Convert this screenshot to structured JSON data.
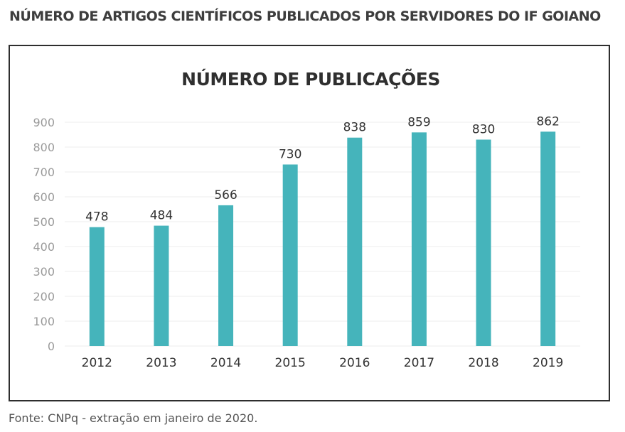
{
  "header": {
    "title": "NÚMERO DE ARTIGOS CIENTÍFICOS PUBLICADOS POR SERVIDORES DO IF GOIANO"
  },
  "footer": {
    "source": "Fonte: CNPq - extração em janeiro de 2020."
  },
  "colors": {
    "bar": "#45b4bb",
    "frame": "#2e2e2e",
    "grid": "#ececec",
    "axis_text": "#9a9a9a",
    "label_text": "#333333"
  },
  "chart_data": {
    "type": "bar",
    "title": "NÚMERO DE PUBLICAÇÕES",
    "xlabel": "",
    "ylabel": "",
    "categories": [
      "2012",
      "2013",
      "2014",
      "2015",
      "2016",
      "2017",
      "2018",
      "2019"
    ],
    "values": [
      478,
      484,
      566,
      730,
      838,
      859,
      830,
      862
    ],
    "ylim": [
      0,
      900
    ],
    "yticks": [
      0,
      100,
      200,
      300,
      400,
      500,
      600,
      700,
      800,
      900
    ],
    "grid": true,
    "legend": "none"
  }
}
